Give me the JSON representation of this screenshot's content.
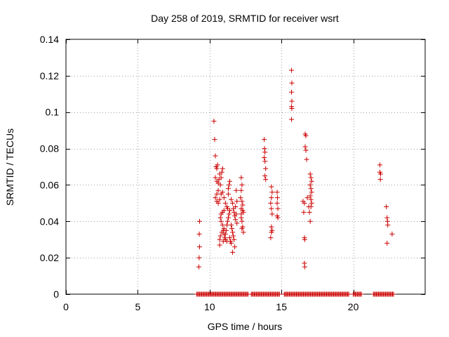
{
  "chart_data": {
    "type": "scatter",
    "title": "Day 258 of 2019, SRMTID for receiver wsrt",
    "xlabel": "GPS time / hours",
    "ylabel": "SRMTID / TECUs",
    "xlim": [
      0,
      25
    ],
    "ylim": [
      0,
      0.14
    ],
    "xticks": [
      0,
      5,
      10,
      15,
      20
    ],
    "yticks": [
      0,
      0.02,
      0.04,
      0.06,
      0.08,
      0.1,
      0.12,
      0.14
    ],
    "xtick_labels": [
      "0",
      "5",
      "10",
      "15",
      "20"
    ],
    "ytick_labels": [
      "0",
      "0.02",
      "0.04",
      "0.06",
      "0.08",
      "0.1",
      "0.12",
      "0.14"
    ],
    "grid": true,
    "marker": "+",
    "colors": {
      "points": "#cc0000",
      "grid": "#a0a0a0",
      "axes": "#000000"
    },
    "series": [
      {
        "points": [
          [
            9.25,
            0.015
          ],
          [
            9.27,
            0.02
          ],
          [
            9.3,
            0.026
          ],
          [
            9.28,
            0.033
          ],
          [
            9.3,
            0.04
          ],
          [
            10.3,
            0.095
          ],
          [
            10.35,
            0.085
          ],
          [
            10.4,
            0.076
          ],
          [
            10.45,
            0.07
          ],
          [
            10.5,
            0.069
          ],
          [
            10.55,
            0.071
          ],
          [
            10.4,
            0.064
          ],
          [
            10.5,
            0.062
          ],
          [
            10.6,
            0.061
          ],
          [
            10.65,
            0.063
          ],
          [
            10.7,
            0.066
          ],
          [
            10.85,
            0.067
          ],
          [
            10.9,
            0.069
          ],
          [
            10.8,
            0.064
          ],
          [
            10.75,
            0.06
          ],
          [
            10.6,
            0.057
          ],
          [
            10.5,
            0.055
          ],
          [
            10.4,
            0.053
          ],
          [
            10.5,
            0.051
          ],
          [
            10.6,
            0.05
          ],
          [
            10.7,
            0.052
          ],
          [
            10.8,
            0.055
          ],
          [
            10.9,
            0.056
          ],
          [
            11.0,
            0.053
          ],
          [
            11.1,
            0.05
          ],
          [
            11.2,
            0.048
          ],
          [
            11.0,
            0.046
          ],
          [
            10.9,
            0.045
          ],
          [
            10.8,
            0.044
          ],
          [
            10.75,
            0.042
          ],
          [
            10.8,
            0.04
          ],
          [
            10.9,
            0.038
          ],
          [
            11.0,
            0.036
          ],
          [
            10.85,
            0.034
          ],
          [
            10.75,
            0.032
          ],
          [
            10.7,
            0.03
          ],
          [
            10.7,
            0.027
          ],
          [
            10.95,
            0.029
          ],
          [
            11.05,
            0.031
          ],
          [
            11.1,
            0.033
          ],
          [
            11.15,
            0.035
          ],
          [
            11.2,
            0.038
          ],
          [
            11.25,
            0.04
          ],
          [
            11.3,
            0.042
          ],
          [
            11.35,
            0.044
          ],
          [
            11.4,
            0.046
          ],
          [
            11.3,
            0.058
          ],
          [
            11.35,
            0.06
          ],
          [
            11.4,
            0.062
          ],
          [
            11.3,
            0.055
          ],
          [
            11.5,
            0.052
          ],
          [
            11.6,
            0.05
          ],
          [
            11.65,
            0.047
          ],
          [
            11.7,
            0.045
          ],
          [
            11.75,
            0.043
          ],
          [
            11.8,
            0.041
          ],
          [
            11.5,
            0.038
          ],
          [
            11.55,
            0.036
          ],
          [
            11.6,
            0.034
          ],
          [
            11.65,
            0.032
          ],
          [
            11.7,
            0.03
          ],
          [
            11.5,
            0.028
          ],
          [
            11.45,
            0.029
          ],
          [
            11.6,
            0.023
          ],
          [
            11.75,
            0.026
          ],
          [
            11.4,
            0.031
          ],
          [
            11.2,
            0.029
          ],
          [
            11.1,
            0.03
          ],
          [
            11.0,
            0.033
          ],
          [
            10.95,
            0.035
          ],
          [
            11.25,
            0.047
          ],
          [
            11.85,
            0.057
          ],
          [
            11.9,
            0.051
          ],
          [
            11.8,
            0.048
          ],
          [
            11.85,
            0.044
          ],
          [
            11.9,
            0.039
          ],
          [
            12.2,
            0.064
          ],
          [
            12.25,
            0.06
          ],
          [
            12.2,
            0.057
          ],
          [
            12.15,
            0.053
          ],
          [
            12.25,
            0.051
          ],
          [
            12.3,
            0.049
          ],
          [
            12.2,
            0.047
          ],
          [
            12.3,
            0.046
          ],
          [
            12.35,
            0.045
          ],
          [
            12.2,
            0.042
          ],
          [
            12.25,
            0.04
          ],
          [
            12.3,
            0.037
          ],
          [
            12.35,
            0.034
          ],
          [
            12.25,
            0.036
          ],
          [
            12.2,
            0.044
          ],
          [
            13.8,
            0.085
          ],
          [
            13.82,
            0.08
          ],
          [
            13.85,
            0.078
          ],
          [
            13.8,
            0.075
          ],
          [
            13.85,
            0.073
          ],
          [
            13.9,
            0.069
          ],
          [
            13.85,
            0.065
          ],
          [
            13.9,
            0.063
          ],
          [
            14.3,
            0.059
          ],
          [
            14.35,
            0.056
          ],
          [
            14.3,
            0.053
          ],
          [
            14.25,
            0.05
          ],
          [
            14.3,
            0.047
          ],
          [
            14.35,
            0.044
          ],
          [
            14.3,
            0.037
          ],
          [
            14.35,
            0.035
          ],
          [
            14.3,
            0.034
          ],
          [
            14.25,
            0.031
          ],
          [
            14.7,
            0.056
          ],
          [
            14.72,
            0.053
          ],
          [
            14.7,
            0.05
          ],
          [
            14.75,
            0.047
          ],
          [
            14.7,
            0.043
          ],
          [
            14.75,
            0.042
          ],
          [
            15.7,
            0.123
          ],
          [
            15.72,
            0.116
          ],
          [
            15.7,
            0.111
          ],
          [
            15.72,
            0.106
          ],
          [
            15.7,
            0.103
          ],
          [
            15.72,
            0.102
          ],
          [
            15.7,
            0.096
          ],
          [
            16.5,
            0.051
          ],
          [
            16.55,
            0.045
          ],
          [
            16.6,
            0.05
          ],
          [
            16.6,
            0.031
          ],
          [
            16.62,
            0.03
          ],
          [
            16.6,
            0.017
          ],
          [
            16.62,
            0.015
          ],
          [
            16.65,
            0.088
          ],
          [
            16.7,
            0.087
          ],
          [
            16.65,
            0.081
          ],
          [
            16.7,
            0.079
          ],
          [
            16.75,
            0.074
          ],
          [
            16.8,
            0.053
          ],
          [
            16.9,
            0.048
          ],
          [
            16.95,
            0.045
          ],
          [
            17.0,
            0.066
          ],
          [
            17.05,
            0.064
          ],
          [
            17.1,
            0.062
          ],
          [
            17.0,
            0.06
          ],
          [
            17.05,
            0.058
          ],
          [
            17.1,
            0.056
          ],
          [
            17.0,
            0.054
          ],
          [
            17.05,
            0.052
          ],
          [
            17.1,
            0.05
          ],
          [
            17.05,
            0.048
          ],
          [
            17.0,
            0.04
          ],
          [
            21.85,
            0.071
          ],
          [
            21.85,
            0.067
          ],
          [
            21.9,
            0.066
          ],
          [
            21.88,
            0.063
          ],
          [
            22.3,
            0.048
          ],
          [
            22.35,
            0.042
          ],
          [
            22.38,
            0.04
          ],
          [
            22.4,
            0.038
          ],
          [
            22.35,
            0.028
          ],
          [
            22.7,
            0.033
          ]
        ]
      }
    ],
    "zero_band": {
      "y": 0,
      "x_ranges": [
        [
          9.1,
          12.7
        ],
        [
          12.9,
          14.9
        ],
        [
          15.2,
          19.7
        ],
        [
          20.0,
          20.6
        ],
        [
          21.4,
          22.8
        ]
      ],
      "step": 0.07
    }
  }
}
